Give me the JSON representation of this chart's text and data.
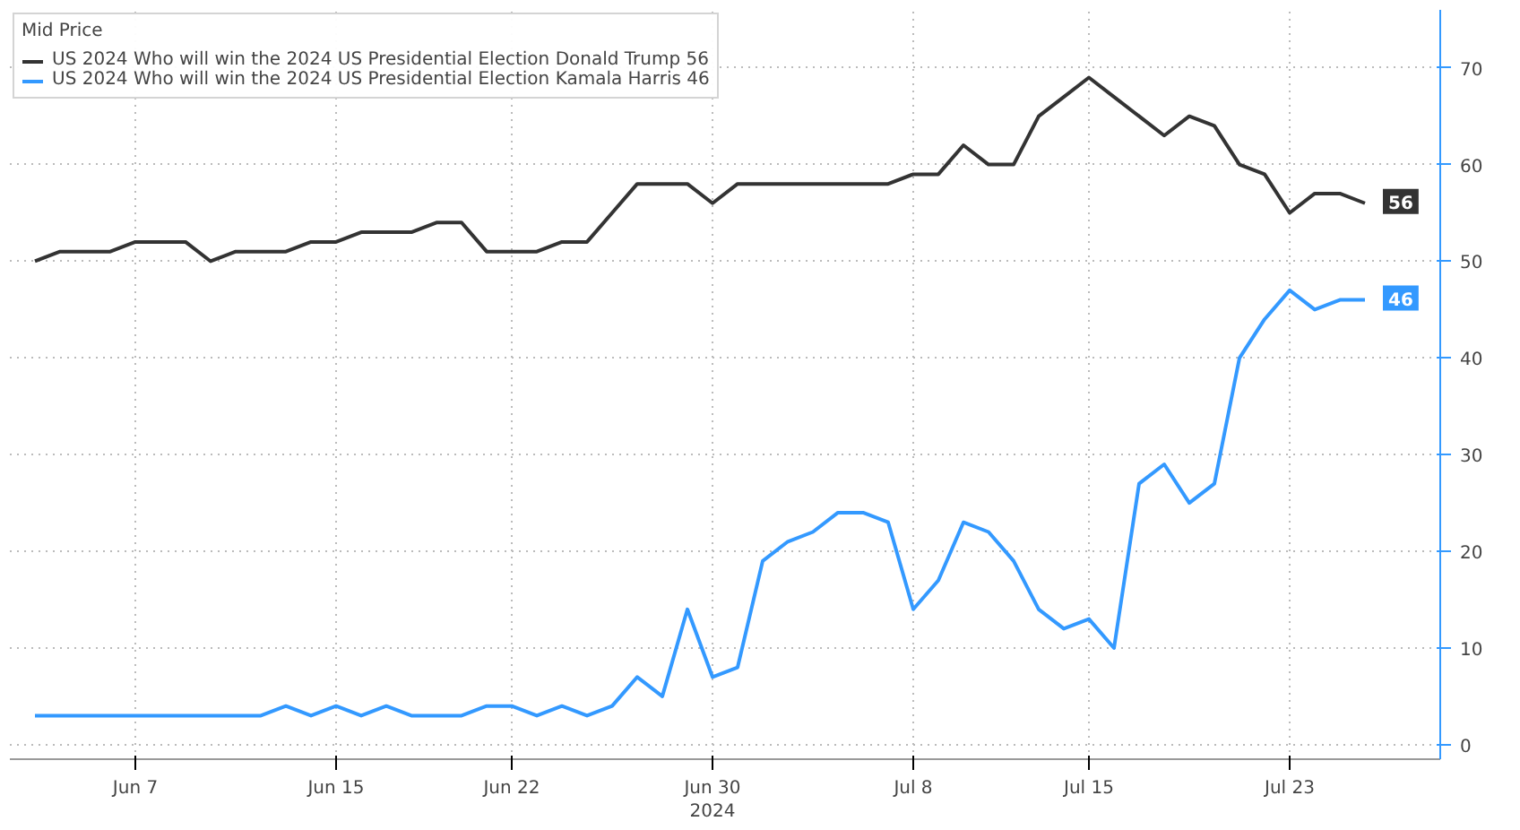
{
  "chart_data": {
    "type": "line",
    "legend_title": "Mid Price",
    "x": [
      "2024-06-03",
      "2024-06-04",
      "2024-06-05",
      "2024-06-06",
      "2024-06-07",
      "2024-06-08",
      "2024-06-09",
      "2024-06-10",
      "2024-06-11",
      "2024-06-12",
      "2024-06-13",
      "2024-06-14",
      "2024-06-15",
      "2024-06-16",
      "2024-06-17",
      "2024-06-18",
      "2024-06-19",
      "2024-06-20",
      "2024-06-21",
      "2024-06-22",
      "2024-06-23",
      "2024-06-24",
      "2024-06-25",
      "2024-06-26",
      "2024-06-27",
      "2024-06-28",
      "2024-06-29",
      "2024-06-30",
      "2024-07-01",
      "2024-07-02",
      "2024-07-03",
      "2024-07-04",
      "2024-07-05",
      "2024-07-06",
      "2024-07-07",
      "2024-07-08",
      "2024-07-09",
      "2024-07-10",
      "2024-07-11",
      "2024-07-12",
      "2024-07-13",
      "2024-07-14",
      "2024-07-15",
      "2024-07-16",
      "2024-07-17",
      "2024-07-18",
      "2024-07-19",
      "2024-07-20",
      "2024-07-21",
      "2024-07-22",
      "2024-07-23",
      "2024-07-24",
      "2024-07-25",
      "2024-07-26"
    ],
    "series": [
      {
        "name": "US 2024 Who will win the 2024 US Presidential Election Donald Trump 56",
        "color": "#333333",
        "values": [
          50,
          51,
          51,
          51,
          52,
          52,
          52,
          50,
          51,
          51,
          51,
          52,
          52,
          53,
          53,
          53,
          54,
          54,
          51,
          51,
          51,
          52,
          52,
          55,
          58,
          58,
          58,
          56,
          58,
          58,
          58,
          58,
          58,
          58,
          58,
          59,
          59,
          62,
          60,
          60,
          65,
          67,
          69,
          67,
          65,
          63,
          65,
          64,
          60,
          59,
          55,
          57,
          57,
          56
        ],
        "value_labels": [
          null,
          null,
          null,
          null,
          null,
          null,
          null,
          null,
          null,
          null,
          null,
          null,
          null,
          null,
          null,
          null,
          null,
          null,
          null,
          null,
          null,
          null,
          null,
          null,
          null,
          null,
          null,
          null,
          null,
          null,
          null,
          null,
          null,
          null,
          null,
          null,
          null,
          null,
          null,
          null,
          null,
          null,
          null,
          null,
          null,
          null,
          null,
          null,
          null,
          null,
          null,
          null,
          null,
          "56"
        ]
      },
      {
        "name": "US 2024 Who will win the 2024 US Presidential Election Kamala Harris 46",
        "color": "#3399ff",
        "values": [
          3,
          3,
          3,
          3,
          3,
          3,
          3,
          3,
          3,
          3,
          4,
          3,
          4,
          3,
          4,
          3,
          3,
          3,
          4,
          4,
          3,
          4,
          3,
          4,
          7,
          5,
          14,
          7,
          8,
          19,
          21,
          22,
          24,
          24,
          23,
          14,
          17,
          23,
          22,
          19,
          14,
          12,
          13,
          10,
          27,
          29,
          25,
          27,
          40,
          44,
          47,
          45,
          46,
          46
        ],
        "value_labels": [
          null,
          null,
          null,
          null,
          null,
          null,
          null,
          null,
          null,
          null,
          null,
          null,
          null,
          null,
          null,
          null,
          null,
          null,
          null,
          null,
          null,
          null,
          null,
          null,
          null,
          null,
          null,
          null,
          null,
          null,
          null,
          null,
          null,
          null,
          null,
          null,
          null,
          null,
          null,
          null,
          null,
          null,
          null,
          null,
          null,
          null,
          null,
          null,
          null,
          null,
          null,
          null,
          null,
          "46"
        ]
      }
    ],
    "xlim": [
      "2024-06-02",
      "2024-07-29"
    ],
    "xticks": [
      {
        "value": "2024-06-07",
        "label": "Jun 7"
      },
      {
        "value": "2024-06-15",
        "label": "Jun 15"
      },
      {
        "value": "2024-06-22",
        "label": "Jun 22"
      },
      {
        "value": "2024-06-30",
        "label": "Jun 30\n2024"
      },
      {
        "value": "2024-07-08",
        "label": "Jul 8"
      },
      {
        "value": "2024-07-15",
        "label": "Jul 15"
      },
      {
        "value": "2024-07-23",
        "label": "Jul 23"
      }
    ],
    "ylim": [
      -1.5,
      76
    ],
    "yticks": [
      0,
      10,
      20,
      30,
      40,
      50,
      60,
      70
    ],
    "grid": true,
    "legend": "top left",
    "marker": "none",
    "line_style": "solid"
  }
}
